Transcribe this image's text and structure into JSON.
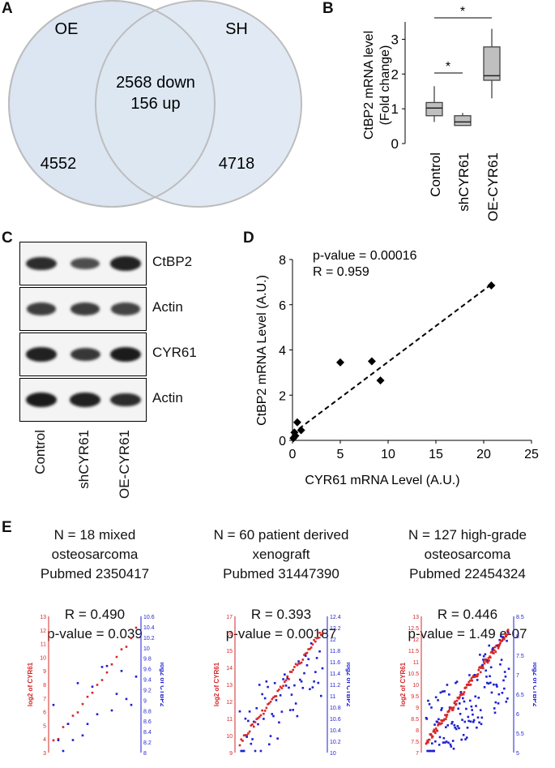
{
  "panels": {
    "a": "A",
    "b": "B",
    "c": "C",
    "d": "D",
    "e": "E"
  },
  "venn": {
    "left_label": "OE",
    "right_label": "SH",
    "overlap_line1": "2568 down",
    "overlap_line2": "156 up",
    "left_only": "4552",
    "right_only": "4718",
    "fill_color": "#dce6f2"
  },
  "boxplot": {
    "ylabel_line1": "CtBP2 mRNA level",
    "ylabel_line2": "(Fold change)",
    "yticks": [
      "0",
      "1",
      "2",
      "3"
    ],
    "ylim": [
      0,
      3.5
    ],
    "groups": [
      {
        "name": "Control",
        "min": 0.62,
        "q1": 0.8,
        "median": 1.02,
        "q3": 1.18,
        "max": 1.65
      },
      {
        "name": "shCYR61",
        "min": 0.52,
        "q1": 0.52,
        "median": 0.62,
        "q3": 0.8,
        "max": 0.88
      },
      {
        "name": "OE-CYR61",
        "min": 1.3,
        "q1": 1.82,
        "median": 1.95,
        "q3": 2.78,
        "max": 3.3
      }
    ],
    "sig_marker": "*",
    "box_color": "#bfbfbf"
  },
  "western": {
    "rows": [
      {
        "label": "CtBP2",
        "intensity": [
          0.85,
          0.55,
          0.95
        ]
      },
      {
        "label": "Actin",
        "intensity": [
          0.7,
          0.7,
          0.65
        ]
      },
      {
        "label": "CYR61",
        "intensity": [
          0.95,
          0.75,
          1.0
        ]
      },
      {
        "label": "Actin",
        "intensity": [
          1.0,
          0.95,
          0.85
        ]
      }
    ],
    "lanes": [
      "Control",
      "shCYR61",
      "OE-CYR61"
    ]
  },
  "scatter": {
    "pvalue_text": "p-value = 0.00016",
    "r_text": "R = 0.959",
    "xlabel": "CYR61 mRNA Level (A.U.)",
    "ylabel": "CtBP2 mRNA Level (A.U.)",
    "xlim": [
      0,
      25
    ],
    "ylim": [
      0,
      8
    ],
    "xticks": [
      "0",
      "5",
      "10",
      "15",
      "20",
      "25"
    ],
    "yticks": [
      "0",
      "2",
      "4",
      "6",
      "8"
    ],
    "points": [
      {
        "x": 0.1,
        "y": 0.1
      },
      {
        "x": 0.3,
        "y": 0.2
      },
      {
        "x": 0.5,
        "y": 0.8
      },
      {
        "x": 0.9,
        "y": 0.45
      },
      {
        "x": 0.2,
        "y": 0.35
      },
      {
        "x": 5.0,
        "y": 3.45
      },
      {
        "x": 8.3,
        "y": 3.5
      },
      {
        "x": 9.2,
        "y": 2.65
      },
      {
        "x": 20.8,
        "y": 6.85
      }
    ],
    "fit": {
      "x0": 0,
      "y0": 0.3,
      "x1": 20.8,
      "y1": 6.9
    }
  },
  "cohorts": [
    {
      "line1": "N = 18 mixed",
      "line2": "osteosarcoma",
      "line3": "Pubmed 2350417",
      "r": "R = 0.490",
      "p": "p-value = 0.039",
      "left_ticks": [
        "13",
        "12",
        "11",
        "10",
        "9",
        "8",
        "7",
        "6",
        "5",
        "4",
        "3"
      ],
      "right_ticks": [
        "10.6",
        "10.4",
        "10.2",
        "10",
        "9.8",
        "9.6",
        "9.4",
        "9.2",
        "9",
        "8.8",
        "8.6",
        "8.4",
        "8.2",
        "8"
      ],
      "left_axis": "log2 of CYR61",
      "right_axis": "log2 of CTBP2"
    },
    {
      "line1": "N = 60 patient derived",
      "line2": "xenograft",
      "line3": "Pubmed 31447390",
      "r": "R = 0.393",
      "p": "p-value = 0.00187",
      "left_ticks": [
        "17",
        "16",
        "15",
        "14",
        "13",
        "12",
        "11",
        "10",
        "9"
      ],
      "right_ticks": [
        "12.4",
        "12.2",
        "12",
        "11.8",
        "11.6",
        "11.4",
        "11.2",
        "11",
        "10.8",
        "10.6",
        "10.4",
        "10.2",
        "10"
      ],
      "left_axis": "log2 of CYR61",
      "right_axis": "log2 of CTBP2"
    },
    {
      "line1": "N = 127 high-grade",
      "line2": "osteosarcoma",
      "line3": "Pubmed 22454324",
      "r": "R = 0.446",
      "p": "p-value = 1.49 e-07",
      "left_ticks": [
        "13",
        "12.5",
        "12",
        "11.5",
        "11",
        "10.5",
        "10",
        "9.5",
        "9",
        "8.5",
        "8",
        "7.5",
        "7"
      ],
      "right_ticks": [
        "8.5",
        "8",
        "7.5",
        "7",
        "6.5",
        "6",
        "5.5",
        "5"
      ],
      "left_axis": "log2 of CYR61",
      "right_axis": "log2 of CTBP2"
    }
  ],
  "colors": {
    "red": "#d62728",
    "blue": "#1f1fd0"
  }
}
